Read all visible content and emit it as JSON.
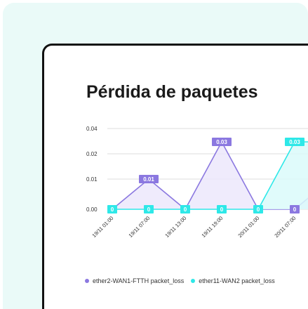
{
  "chart_data": {
    "type": "line",
    "title": "Pérdida de paquetes",
    "y_ticks": [
      "0.04",
      "0.02",
      "0.01",
      "0.00"
    ],
    "x_ticks": [
      "19/11 01:00",
      "19/11 07:00",
      "19/11 13:00",
      "19/11 19:00",
      "20/11 01:00",
      "20/11 07:00"
    ],
    "series": [
      {
        "name": "ether2-WAN1-FTTH packet_loss",
        "color": "#8b78e0",
        "fill": "#ece8fb",
        "points": [
          0,
          0.01,
          0,
          0.03,
          0,
          0,
          0.01
        ],
        "labels": [
          "",
          "0.01",
          "",
          "0.03",
          "",
          "0",
          ""
        ]
      },
      {
        "name": "ether11-WAN2 packet_loss",
        "color": "#2ee8e8",
        "fill": "#dafafa",
        "points": [
          0,
          0,
          0,
          0,
          0,
          0.03,
          0.03
        ],
        "labels": [
          "0",
          "0",
          "0",
          "0",
          "0",
          "0.03",
          ""
        ]
      }
    ],
    "legend_position": "bottom",
    "grid": true
  }
}
